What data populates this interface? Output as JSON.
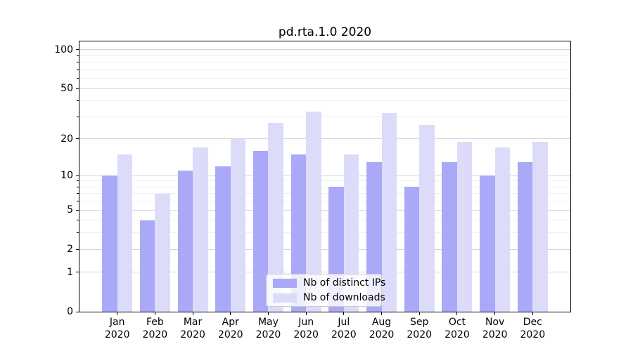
{
  "chart_data": {
    "type": "bar",
    "title": "pd.rta.1.0 2020",
    "categories": [
      "Jan",
      "Feb",
      "Mar",
      "Apr",
      "May",
      "Jun",
      "Jul",
      "Aug",
      "Sep",
      "Oct",
      "Nov",
      "Dec"
    ],
    "tick_year_label": "2020",
    "series": [
      {
        "name": "Nb of distinct IPs",
        "color": "#a9a9f7",
        "values": [
          10,
          4,
          11,
          12,
          16,
          15,
          8,
          13,
          8,
          13,
          10,
          13
        ]
      },
      {
        "name": "Nb of downloads",
        "color": "#dcdcfa",
        "values": [
          15,
          7,
          17,
          20,
          27,
          33,
          15,
          32,
          26,
          19,
          17,
          19
        ]
      }
    ],
    "xlabel": "",
    "ylabel": "",
    "yscale": "log1p",
    "ylim": [
      0,
      116
    ],
    "yticks": [
      0,
      1,
      2,
      5,
      10,
      20,
      50,
      100
    ],
    "yticks_minor": [
      3,
      4,
      6,
      7,
      8,
      9,
      30,
      40,
      60,
      70,
      80,
      90
    ],
    "grid": "on",
    "legend_position": "inside-lower-center"
  },
  "colors": {
    "background": "#ffffff",
    "axes_frame": "#000000",
    "text": "#000000",
    "grid_major": "#d6d6d6",
    "grid_minor": "#efefef",
    "legend_border": "#cccccc",
    "legend_background": "rgba(255,255,255,0.8)",
    "bar_distinct_ips": "#a9a9f7",
    "bar_downloads": "#dcdcfa"
  }
}
